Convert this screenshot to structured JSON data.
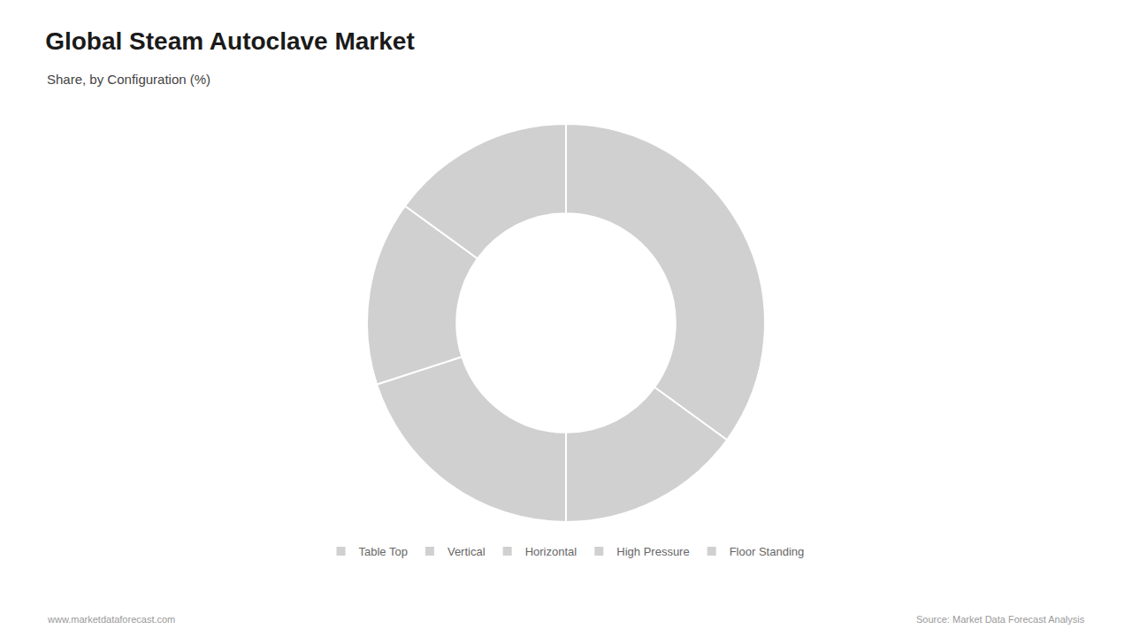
{
  "chart_data": {
    "type": "donut",
    "title": "Global Steam Autoclave Market",
    "subtitle": "Share, by Configuration (%)",
    "categories": [
      "Table Top",
      "Vertical",
      "Horizontal",
      "High Pressure",
      "Floor Standing"
    ],
    "values": [
      35,
      15,
      20,
      15,
      15
    ],
    "colors": [
      "#d0d0d0",
      "#d0d0d0",
      "#d0d0d0",
      "#d0d0d0",
      "#d0d0d0"
    ],
    "legend": "bottom",
    "data_labels": false,
    "annotations": [
      "www.marketdataforecast.com",
      "Source: Market Data Forecast Analysis"
    ]
  }
}
